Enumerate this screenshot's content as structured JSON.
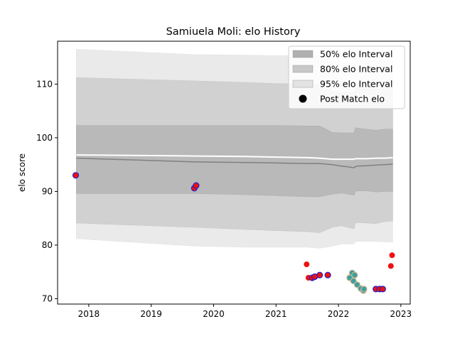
{
  "chart_data": {
    "type": "scatter",
    "title": "Samiuela Moli: elo History",
    "xlabel": "",
    "ylabel": "elo score",
    "xlim": [
      2017.5,
      2023.15
    ],
    "ylim": [
      69,
      118
    ],
    "grid": false,
    "legend_position": "top-right",
    "x_ticks": [
      2018,
      2019,
      2020,
      2021,
      2022,
      2023
    ],
    "x_tick_labels": [
      "2018",
      "2019",
      "2020",
      "2021",
      "2022",
      "2023"
    ],
    "y_ticks": [
      70,
      80,
      90,
      100,
      110
    ],
    "y_tick_labels": [
      "70",
      "80",
      "90",
      "100",
      "110"
    ],
    "legend": [
      {
        "label": "50% elo Interval",
        "kind": "patch",
        "color": "#b0b0b0"
      },
      {
        "label": "80% elo Interval",
        "kind": "patch",
        "color": "#c8c8c8"
      },
      {
        "label": "95% elo Interval",
        "kind": "patch",
        "color": "#e3e3e3"
      },
      {
        "label": "Post Match elo",
        "kind": "marker",
        "color": "#000000"
      }
    ],
    "colors": {
      "band50": "#b0b0b0",
      "band80": "#c8c8c8",
      "band95": "#e3e3e3",
      "median_line": "#808080",
      "mean_line": "#ffffff",
      "point_red": "#ee1111",
      "point_teal": "#3aa0a0",
      "edge_blue": "#2222cc",
      "edge_tan": "#d2b48c"
    },
    "band_x": [
      2017.8,
      2019.7,
      2020.5,
      2021.0,
      2021.5,
      2021.7,
      2021.9,
      2022.05,
      2022.15,
      2022.25,
      2022.27,
      2022.3,
      2022.45,
      2022.6,
      2022.75,
      2022.87
    ],
    "band_50": {
      "upper": [
        102.3,
        102.3,
        102.3,
        102.3,
        102.2,
        102.2,
        101.0,
        100.9,
        100.9,
        100.9,
        101.9,
        101.8,
        101.6,
        101.4,
        101.6,
        101.6
      ],
      "lower": [
        89.6,
        89.6,
        89.4,
        89.2,
        89.0,
        89.0,
        89.5,
        89.7,
        89.5,
        89.3,
        90.0,
        90.1,
        90.1,
        89.9,
        90.0,
        90.0
      ]
    },
    "band_80": {
      "upper": [
        111.2,
        110.6,
        110.3,
        110.1,
        110.0,
        109.9,
        108.7,
        108.5,
        108.5,
        108.5,
        109.5,
        109.4,
        109.3,
        109.2,
        109.3,
        109.3
      ],
      "lower": [
        84.1,
        83.3,
        82.9,
        82.7,
        82.5,
        82.3,
        83.3,
        83.6,
        83.3,
        83.0,
        84.1,
        84.2,
        84.1,
        84.0,
        84.4,
        84.5
      ]
    },
    "band_95": {
      "upper": [
        116.5,
        115.5,
        115.4,
        115.3,
        115.3,
        115.3,
        114.2,
        114.0,
        114.0,
        114.0,
        114.9,
        114.8,
        114.6,
        114.5,
        114.5,
        114.5
      ],
      "lower": [
        81.2,
        79.8,
        79.6,
        79.6,
        79.6,
        79.4,
        79.8,
        80.2,
        80.2,
        80.2,
        80.6,
        80.7,
        80.7,
        80.7,
        80.6,
        80.6
      ]
    },
    "median_line": [
      96.2,
      95.5,
      95.4,
      95.3,
      95.2,
      95.2,
      95.0,
      94.7,
      94.6,
      94.4,
      94.6,
      94.7,
      94.8,
      94.9,
      95.0,
      95.1
    ],
    "mean_line": [
      96.8,
      96.6,
      96.5,
      96.4,
      96.3,
      96.2,
      96.0,
      96.0,
      96.0,
      96.0,
      96.1,
      96.1,
      96.1,
      96.2,
      96.2,
      96.3
    ],
    "points": [
      {
        "x": 2017.79,
        "y": 93.0,
        "fill": "red",
        "edge": "blue"
      },
      {
        "x": 2019.69,
        "y": 90.6,
        "fill": "red",
        "edge": "blue"
      },
      {
        "x": 2019.72,
        "y": 91.1,
        "fill": "red",
        "edge": "blue"
      },
      {
        "x": 2021.49,
        "y": 76.4,
        "fill": "red",
        "edge": "none"
      },
      {
        "x": 2021.52,
        "y": 73.9,
        "fill": "red",
        "edge": "none"
      },
      {
        "x": 2021.58,
        "y": 73.9,
        "fill": "red",
        "edge": "blue"
      },
      {
        "x": 2021.62,
        "y": 74.1,
        "fill": "red",
        "edge": "blue"
      },
      {
        "x": 2021.7,
        "y": 74.4,
        "fill": "red",
        "edge": "blue"
      },
      {
        "x": 2021.83,
        "y": 74.4,
        "fill": "red",
        "edge": "blue"
      },
      {
        "x": 2022.18,
        "y": 73.9,
        "fill": "teal",
        "edge": "tan"
      },
      {
        "x": 2022.22,
        "y": 74.8,
        "fill": "teal",
        "edge": "tan"
      },
      {
        "x": 2022.24,
        "y": 73.3,
        "fill": "teal",
        "edge": "tan"
      },
      {
        "x": 2022.26,
        "y": 74.4,
        "fill": "teal",
        "edge": "tan"
      },
      {
        "x": 2022.3,
        "y": 72.6,
        "fill": "teal",
        "edge": "tan"
      },
      {
        "x": 2022.36,
        "y": 71.9,
        "fill": "teal",
        "edge": "tan"
      },
      {
        "x": 2022.4,
        "y": 71.5,
        "fill": "teal",
        "edge": "tan"
      },
      {
        "x": 2022.41,
        "y": 71.8,
        "fill": "teal",
        "edge": "tan"
      },
      {
        "x": 2022.6,
        "y": 71.8,
        "fill": "red",
        "edge": "blue"
      },
      {
        "x": 2022.66,
        "y": 71.8,
        "fill": "red",
        "edge": "blue"
      },
      {
        "x": 2022.71,
        "y": 71.8,
        "fill": "red",
        "edge": "blue"
      },
      {
        "x": 2022.84,
        "y": 76.1,
        "fill": "red",
        "edge": "none"
      },
      {
        "x": 2022.86,
        "y": 78.1,
        "fill": "red",
        "edge": "none"
      }
    ]
  }
}
